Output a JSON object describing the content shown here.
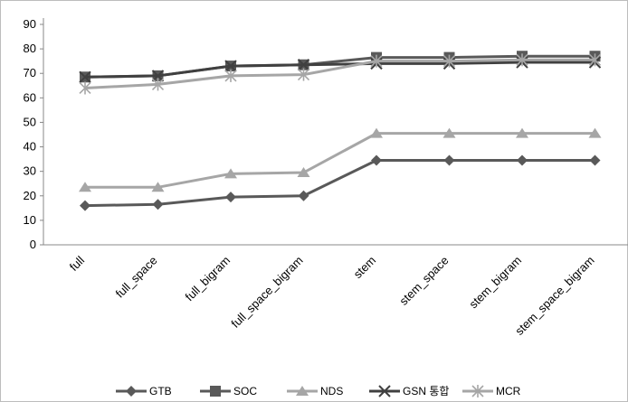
{
  "chart_data": {
    "type": "line",
    "title": "",
    "xlabel": "",
    "ylabel": "",
    "ylim": [
      0,
      90
    ],
    "yticks": [
      0,
      10,
      20,
      30,
      40,
      50,
      60,
      70,
      80,
      90
    ],
    "grid": false,
    "legend_position": "bottom",
    "categories": [
      "full",
      "full_space",
      "full_bigram",
      "full_space_bigram",
      "stem",
      "stem_space",
      "stem_bigram",
      "stem_space_bigram"
    ],
    "series": [
      {
        "name": "GTB",
        "marker": "diamond",
        "color": "#595959",
        "values": [
          16,
          16.5,
          19.5,
          20,
          34.5,
          34.5,
          34.5,
          34.5
        ]
      },
      {
        "name": "SOC",
        "marker": "square",
        "color": "#595959",
        "values": [
          68.5,
          69,
          73,
          73.5,
          76.5,
          76.5,
          77,
          77
        ]
      },
      {
        "name": "NDS",
        "marker": "triangle",
        "color": "#a6a6a6",
        "values": [
          23.5,
          23.5,
          29,
          29.5,
          45.5,
          45.5,
          45.5,
          45.5
        ]
      },
      {
        "name": "GSN 통합",
        "marker": "x",
        "color": "#404040",
        "values": [
          68.5,
          69,
          73,
          73.5,
          74,
          74,
          74.5,
          74.5
        ]
      },
      {
        "name": "MCR",
        "marker": "star",
        "color": "#a6a6a6",
        "values": [
          64,
          65.5,
          69,
          69.5,
          75,
          75,
          75.5,
          75.5
        ]
      }
    ]
  }
}
